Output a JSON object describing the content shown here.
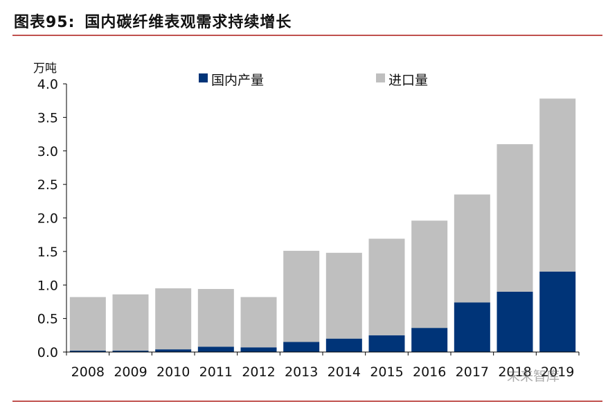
{
  "header": {
    "figure_label": "图表95:",
    "title": "国内碳纤维表观需求持续增长"
  },
  "watermark": "未来智库",
  "chart_data": {
    "type": "bar",
    "stacked": true,
    "ylabel": "万吨",
    "ylim": [
      0,
      4.0
    ],
    "yticks": [
      "0.0",
      "0.5",
      "1.0",
      "1.5",
      "2.0",
      "2.5",
      "3.0",
      "3.5",
      "4.0"
    ],
    "categories": [
      "2008",
      "2009",
      "2010",
      "2011",
      "2012",
      "2013",
      "2014",
      "2015",
      "2016",
      "2017",
      "2018",
      "2019"
    ],
    "series": [
      {
        "name": "国内产量",
        "color": "#003478",
        "values": [
          0.02,
          0.02,
          0.04,
          0.08,
          0.07,
          0.15,
          0.2,
          0.25,
          0.36,
          0.74,
          0.9,
          1.2
        ]
      },
      {
        "name": "进口量",
        "color": "#bfbfbf",
        "values": [
          0.8,
          0.84,
          0.91,
          0.86,
          0.75,
          1.36,
          1.28,
          1.44,
          1.6,
          1.61,
          2.2,
          2.58
        ]
      }
    ],
    "legend_position": "top",
    "grid": false
  }
}
